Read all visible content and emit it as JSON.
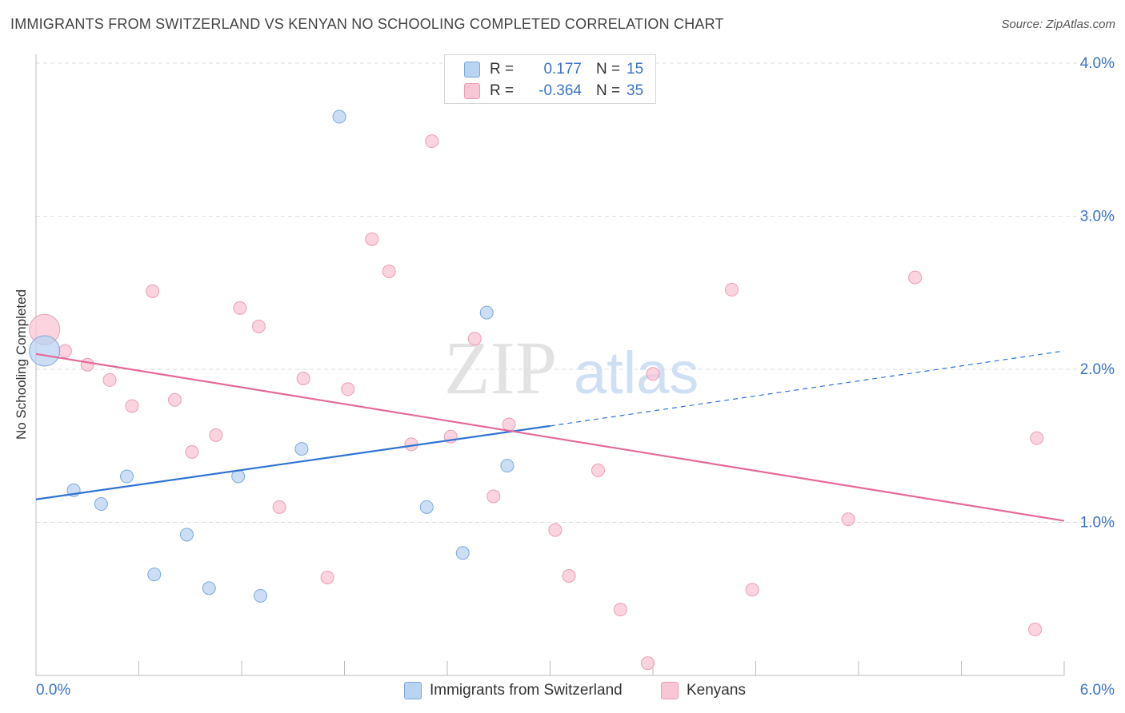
{
  "title": "IMMIGRANTS FROM SWITZERLAND VS KENYAN NO SCHOOLING COMPLETED CORRELATION CHART",
  "source": "Source: ZipAtlas.com",
  "watermark": {
    "zip": "ZIP",
    "atlas": "atlas"
  },
  "legend": {
    "rows": [
      {
        "r_label": "R =",
        "r_value": "0.177",
        "n_label": "N =",
        "n_value": "15"
      },
      {
        "r_label": "R =",
        "r_value": "-0.364",
        "n_label": "N =",
        "n_value": "35"
      }
    ]
  },
  "bottom_legend": {
    "series1": "Immigrants from Switzerland",
    "series2": "Kenyans"
  },
  "colors": {
    "blue_fill": "#b9d3f2",
    "blue_stroke": "#7aa9df",
    "blue_line": "#2f74d0",
    "pink_fill": "#f9c6d6",
    "pink_stroke": "#ec9db5",
    "pink_line": "#e4699a",
    "axis_text": "#3a73c9",
    "grid": "#dddddd"
  },
  "chart_data": {
    "type": "scatter",
    "title": "IMMIGRANTS FROM SWITZERLAND VS KENYAN NO SCHOOLING COMPLETED CORRELATION CHART",
    "xlabel": "",
    "ylabel": "No Schooling Completed",
    "xlim": [
      0,
      6
    ],
    "ylim": [
      0,
      4.15
    ],
    "x_tick_labels": [
      "0.0%",
      "6.0%"
    ],
    "y_ticks": [
      1,
      2,
      3,
      4
    ],
    "y_tick_labels": [
      "1.0%",
      "2.0%",
      "3.0%",
      "4.0%"
    ],
    "grid": true,
    "legend_placement": "top-center",
    "series": [
      {
        "name": "Immigrants from Switzerland",
        "r": 0.177,
        "n": 15,
        "trend": {
          "x0": 0.0,
          "y0": 1.15,
          "x1": 3.0,
          "y1": 1.63,
          "dashed_to_x": 6.0,
          "dashed_to_y": 2.12
        },
        "points": [
          {
            "x": 0.05,
            "y": 2.12,
            "large": true
          },
          {
            "x": 0.22,
            "y": 1.21
          },
          {
            "x": 0.38,
            "y": 1.12
          },
          {
            "x": 0.53,
            "y": 1.3
          },
          {
            "x": 0.69,
            "y": 0.66
          },
          {
            "x": 0.88,
            "y": 0.92
          },
          {
            "x": 1.01,
            "y": 0.57
          },
          {
            "x": 1.18,
            "y": 1.3
          },
          {
            "x": 1.31,
            "y": 0.52
          },
          {
            "x": 1.55,
            "y": 1.48
          },
          {
            "x": 1.77,
            "y": 3.65
          },
          {
            "x": 2.28,
            "y": 1.1
          },
          {
            "x": 2.49,
            "y": 0.8
          },
          {
            "x": 2.63,
            "y": 2.37
          },
          {
            "x": 2.75,
            "y": 1.37
          }
        ]
      },
      {
        "name": "Kenyans",
        "r": -0.364,
        "n": 35,
        "trend": {
          "x0": 0.0,
          "y0": 2.1,
          "x1": 6.0,
          "y1": 1.01
        },
        "points": [
          {
            "x": 0.05,
            "y": 2.26,
            "large": true
          },
          {
            "x": 0.17,
            "y": 2.12
          },
          {
            "x": 0.3,
            "y": 2.03
          },
          {
            "x": 0.43,
            "y": 1.93
          },
          {
            "x": 0.56,
            "y": 1.76
          },
          {
            "x": 0.68,
            "y": 2.51
          },
          {
            "x": 0.81,
            "y": 1.8
          },
          {
            "x": 0.91,
            "y": 1.46
          },
          {
            "x": 1.05,
            "y": 1.57
          },
          {
            "x": 1.19,
            "y": 2.4
          },
          {
            "x": 1.3,
            "y": 2.28
          },
          {
            "x": 1.42,
            "y": 1.1
          },
          {
            "x": 1.56,
            "y": 1.94
          },
          {
            "x": 1.7,
            "y": 0.64
          },
          {
            "x": 1.82,
            "y": 1.87
          },
          {
            "x": 1.96,
            "y": 2.85
          },
          {
            "x": 2.06,
            "y": 2.64
          },
          {
            "x": 2.19,
            "y": 1.51
          },
          {
            "x": 2.31,
            "y": 3.49
          },
          {
            "x": 2.42,
            "y": 1.56
          },
          {
            "x": 2.56,
            "y": 2.2
          },
          {
            "x": 2.67,
            "y": 1.17
          },
          {
            "x": 2.76,
            "y": 1.64
          },
          {
            "x": 3.03,
            "y": 0.95
          },
          {
            "x": 3.11,
            "y": 0.65
          },
          {
            "x": 3.28,
            "y": 1.34
          },
          {
            "x": 3.41,
            "y": 0.43
          },
          {
            "x": 3.57,
            "y": 0.08
          },
          {
            "x": 3.6,
            "y": 1.97
          },
          {
            "x": 4.06,
            "y": 2.52
          },
          {
            "x": 4.18,
            "y": 0.56
          },
          {
            "x": 4.74,
            "y": 1.02
          },
          {
            "x": 5.13,
            "y": 2.6
          },
          {
            "x": 5.84,
            "y": 1.55
          },
          {
            "x": 5.83,
            "y": 0.3
          }
        ]
      }
    ]
  }
}
